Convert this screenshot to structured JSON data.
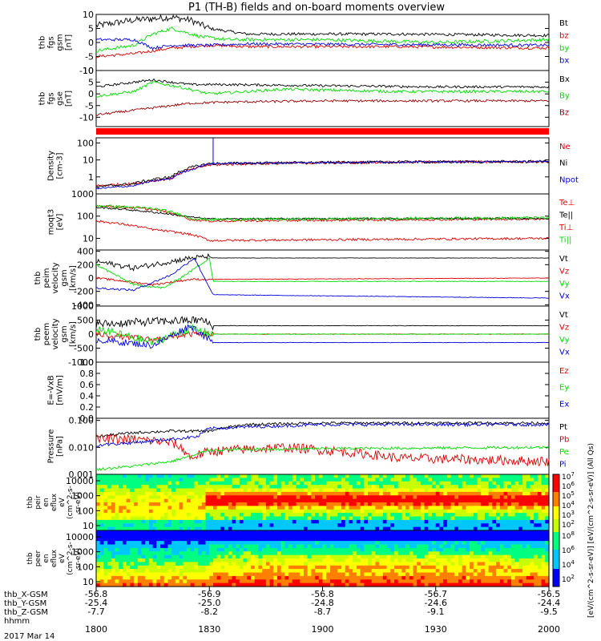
{
  "title": "P1  (TH-B) fields and on-board moments overview",
  "footer": {
    "date": "2017 Mar 14"
  },
  "colors": {
    "black": "#000000",
    "red": "#dd0000",
    "green": "#00dd00",
    "blue": "#0000dd",
    "darkred": "#990000",
    "brightred": "#ff0000"
  },
  "chart_data": {
    "type": "line",
    "time_axis": {
      "label": "hhmm",
      "range": [
        1800,
        2000
      ],
      "ticks": [
        "1800",
        "1830",
        "1900",
        "1930",
        "2000"
      ],
      "ephemeris": [
        {
          "label": "thb_X-GSM",
          "values": [
            "-56.8",
            "-56.9",
            "-56.8",
            "-56.7",
            "-56.5"
          ]
        },
        {
          "label": "thb_Y-GSM",
          "values": [
            "-25.4",
            "-25.0",
            "-24.8",
            "-24.6",
            "-24.4"
          ]
        },
        {
          "label": "thb_Z-GSM",
          "values": [
            "-7.7",
            "-8.2",
            "-8.7",
            "-9.1",
            "-9.5"
          ]
        }
      ]
    },
    "panels": [
      {
        "id": "p1",
        "ylabel": [
          "thb",
          "fgs",
          "gsm",
          "[nT]"
        ],
        "scale": "linear",
        "ylim": [
          -10,
          10
        ],
        "ticks": [
          "10",
          "5",
          "0",
          "-5",
          "-10"
        ],
        "series": [
          {
            "name": "Bt",
            "color": "#000000"
          },
          {
            "name": "bz",
            "color": "#dd0000"
          },
          {
            "name": "by",
            "color": "#00dd00"
          },
          {
            "name": "bx",
            "color": "#0000dd"
          }
        ]
      },
      {
        "id": "p2",
        "ylabel": [
          "thb",
          "fgs",
          "gse",
          "[nT]"
        ],
        "scale": "linear",
        "ylim": [
          -14,
          10
        ],
        "ticks": [
          "10",
          "5",
          "0",
          "-5",
          "-10"
        ],
        "series": [
          {
            "name": "Bx",
            "color": "#000000"
          },
          {
            "name": "By",
            "color": "#00dd00"
          },
          {
            "name": "Bz",
            "color": "#990000"
          }
        ]
      },
      {
        "id": "p3",
        "ylabel": [
          "Density",
          "[cm-3]"
        ],
        "scale": "log",
        "ylim": [
          0.1,
          200
        ],
        "ticks": [
          "100",
          "10",
          "1"
        ],
        "series": [
          {
            "name": "Ne",
            "color": "#dd0000"
          },
          {
            "name": "Ni",
            "color": "#000000"
          },
          {
            "name": "Npot",
            "color": "#0000dd"
          }
        ]
      },
      {
        "id": "p4",
        "ylabel": [
          "moqt3",
          "[eV]"
        ],
        "scale": "log",
        "ylim": [
          3,
          1000
        ],
        "ticks": [
          "1000",
          "100",
          "10"
        ],
        "series": [
          {
            "name": "Te⊥",
            "color": "#dd0000"
          },
          {
            "name": "Te||",
            "color": "#000000"
          },
          {
            "name": "Ti⊥",
            "color": "#dd0000"
          },
          {
            "name": "Ti||",
            "color": "#00dd00"
          }
        ]
      },
      {
        "id": "p5",
        "ylabel": [
          "thb",
          "peim",
          "velocity",
          "gsm",
          "[km/s]"
        ],
        "scale": "linear",
        "ylim": [
          -420,
          420
        ],
        "ticks": [
          "400",
          "200",
          "0",
          "-200",
          "-400"
        ],
        "series": [
          {
            "name": "Vt",
            "color": "#000000"
          },
          {
            "name": "Vz",
            "color": "#dd0000"
          },
          {
            "name": "Vy",
            "color": "#00dd00"
          },
          {
            "name": "Vx",
            "color": "#0000dd"
          }
        ]
      },
      {
        "id": "p6",
        "ylabel": [
          "thb",
          "peem",
          "velocity",
          "gsm",
          "[km/s]"
        ],
        "scale": "linear",
        "ylim": [
          -1000,
          1000
        ],
        "ticks": [
          "1000",
          "500",
          "0",
          "-500",
          "-1000"
        ],
        "series": [
          {
            "name": "Vt",
            "color": "#000000"
          },
          {
            "name": "Vz",
            "color": "#dd0000"
          },
          {
            "name": "Vy",
            "color": "#00dd00"
          },
          {
            "name": "Vx",
            "color": "#0000dd"
          }
        ]
      },
      {
        "id": "p7",
        "ylabel": [
          "E=-VxB",
          "[mV/m]"
        ],
        "scale": "linear",
        "ylim": [
          0,
          1
        ],
        "ticks": [
          "1.0",
          "0.8",
          "0.6",
          "0.4",
          "0.2",
          "0.0"
        ],
        "series": [
          {
            "name": "Ez",
            "color": "#dd0000"
          },
          {
            "name": "Ey",
            "color": "#00dd00"
          },
          {
            "name": "Ex",
            "color": "#0000dd"
          }
        ]
      },
      {
        "id": "p8",
        "ylabel": [
          "Pressure",
          "[nPa]"
        ],
        "scale": "log",
        "ylim": [
          0.001,
          0.12
        ],
        "ticks": [
          "0.100",
          "0.010",
          "0.001"
        ],
        "series": [
          {
            "name": "Pt",
            "color": "#000000"
          },
          {
            "name": "Pb",
            "color": "#dd0000"
          },
          {
            "name": "Pe",
            "color": "#00dd00"
          },
          {
            "name": "Pi",
            "color": "#0000dd"
          }
        ]
      }
    ],
    "spectrograms": [
      {
        "id": "s1",
        "ylabel": [
          "thb",
          "peir",
          "en",
          "eflux",
          "eV",
          "(cm^2-s-",
          "sr-eV)"
        ],
        "ticks": [
          "10000",
          "1000",
          "100",
          "10"
        ]
      },
      {
        "id": "s2",
        "ylabel": [
          "thb",
          "peer",
          "en",
          "eflux",
          "eV",
          "(cm^2-s-",
          "sr-eV)"
        ],
        "ticks": [
          "10000",
          "1000",
          "100",
          "10"
        ]
      }
    ],
    "colorbar": {
      "ticks1": [
        "10^7",
        "10^6",
        "10^5",
        "10^4",
        "10^3",
        "10^2"
      ],
      "ticks2": [
        "10^8",
        "10^6",
        "10^4",
        "10^2"
      ],
      "label": "[eV/(cm^2-s-sr-eV)] [eV/(cm^2-s-sr-eV)] (All Qs)"
    }
  }
}
